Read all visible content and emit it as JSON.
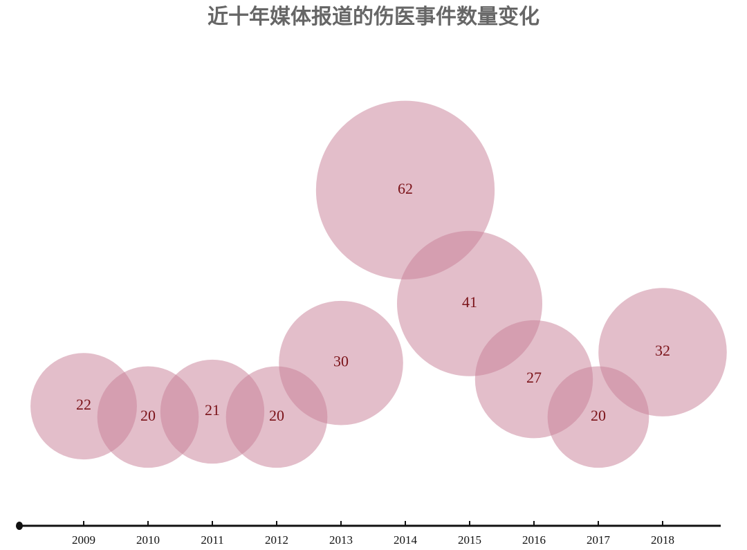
{
  "chart_data": {
    "type": "bubble",
    "title": "近十年媒体报道的伤医事件数量变化",
    "categories": [
      "2009",
      "2010",
      "2011",
      "2012",
      "2013",
      "2014",
      "2015",
      "2016",
      "2017",
      "2018"
    ],
    "values": [
      22,
      20,
      21,
      20,
      30,
      62,
      41,
      27,
      20,
      32
    ],
    "color": "#c77d95"
  }
}
